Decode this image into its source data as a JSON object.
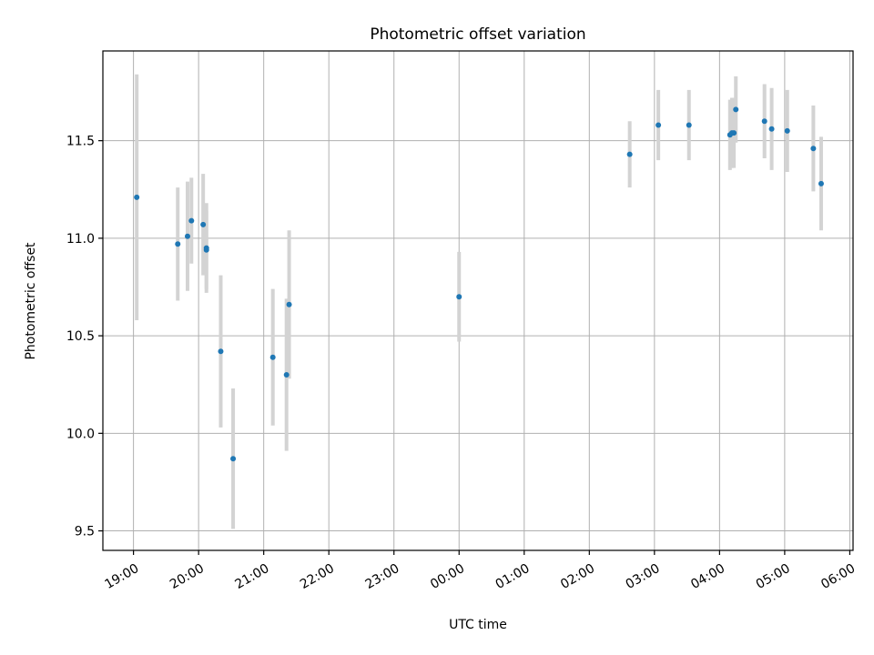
{
  "chart_data": {
    "type": "scatter",
    "title": "Photometric offset variation",
    "xlabel": "UTC time",
    "ylabel": "Photometric offset",
    "x_axis_kind": "time (UTC), hours; x values in hours relative to 00:00 of second day",
    "xlim": [
      -5.47,
      6.05
    ],
    "ylim": [
      9.4,
      11.96
    ],
    "x_ticks": [
      {
        "value": -5,
        "label": "19:00"
      },
      {
        "value": -4,
        "label": "20:00"
      },
      {
        "value": -3,
        "label": "21:00"
      },
      {
        "value": -2,
        "label": "22:00"
      },
      {
        "value": -1,
        "label": "23:00"
      },
      {
        "value": 0,
        "label": "00:00"
      },
      {
        "value": 1,
        "label": "01:00"
      },
      {
        "value": 2,
        "label": "02:00"
      },
      {
        "value": 3,
        "label": "03:00"
      },
      {
        "value": 4,
        "label": "04:00"
      },
      {
        "value": 5,
        "label": "05:00"
      },
      {
        "value": 6,
        "label": "06:00"
      }
    ],
    "y_ticks": [
      {
        "value": 9.5,
        "label": "9.5"
      },
      {
        "value": 10.0,
        "label": "10.0"
      },
      {
        "value": 10.5,
        "label": "10.5"
      },
      {
        "value": 11.0,
        "label": "11.0"
      },
      {
        "value": 11.5,
        "label": "11.5"
      }
    ],
    "grid": true,
    "colors": {
      "point": "#1f77b4",
      "errorbar": "#d3d3d3"
    },
    "points": [
      {
        "time": "19:03",
        "x": -4.95,
        "y": 11.21,
        "err": 0.63
      },
      {
        "time": "19:41",
        "x": -4.32,
        "y": 10.97,
        "err": 0.29
      },
      {
        "time": "19:50",
        "x": -4.17,
        "y": 11.01,
        "err": 0.28
      },
      {
        "time": "19:53",
        "x": -4.11,
        "y": 11.09,
        "err": 0.22
      },
      {
        "time": "20:04",
        "x": -3.93,
        "y": 11.07,
        "err": 0.26
      },
      {
        "time": "20:07",
        "x": -3.88,
        "y": 10.95,
        "err": 0.23
      },
      {
        "time": "20:07",
        "x": -3.88,
        "y": 10.94,
        "err": 0.2
      },
      {
        "time": "20:20",
        "x": -3.66,
        "y": 10.42,
        "err": 0.39
      },
      {
        "time": "20:32",
        "x": -3.47,
        "y": 9.87,
        "err": 0.36
      },
      {
        "time": "21:08",
        "x": -2.86,
        "y": 10.39,
        "err": 0.35
      },
      {
        "time": "21:21",
        "x": -2.65,
        "y": 10.3,
        "err": 0.39
      },
      {
        "time": "21:23",
        "x": -2.61,
        "y": 10.66,
        "err": 0.38
      },
      {
        "time": "00:00",
        "x": 0.0,
        "y": 10.7,
        "err": 0.23
      },
      {
        "time": "02:37",
        "x": 2.62,
        "y": 11.43,
        "err": 0.17
      },
      {
        "time": "03:04",
        "x": 3.06,
        "y": 11.58,
        "err": 0.18
      },
      {
        "time": "03:32",
        "x": 3.53,
        "y": 11.58,
        "err": 0.18
      },
      {
        "time": "04:10",
        "x": 4.16,
        "y": 11.53,
        "err": 0.18
      },
      {
        "time": "04:11",
        "x": 4.19,
        "y": 11.54,
        "err": 0.18
      },
      {
        "time": "04:13",
        "x": 4.22,
        "y": 11.54,
        "err": 0.18
      },
      {
        "time": "04:15",
        "x": 4.25,
        "y": 11.66,
        "err": 0.17
      },
      {
        "time": "04:41",
        "x": 4.69,
        "y": 11.6,
        "err": 0.19
      },
      {
        "time": "04:48",
        "x": 4.8,
        "y": 11.56,
        "err": 0.21
      },
      {
        "time": "05:03",
        "x": 5.04,
        "y": 11.55,
        "err": 0.21
      },
      {
        "time": "05:27",
        "x": 5.44,
        "y": 11.46,
        "err": 0.22
      },
      {
        "time": "05:34",
        "x": 5.56,
        "y": 11.28,
        "err": 0.24
      }
    ]
  }
}
